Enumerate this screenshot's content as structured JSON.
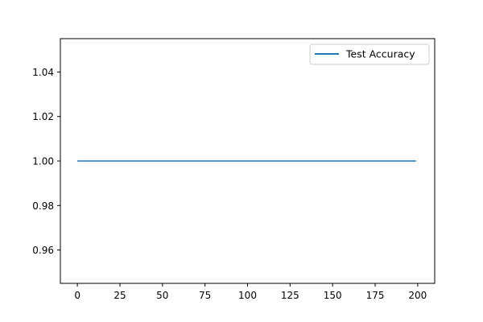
{
  "chart_data": {
    "type": "line",
    "title": "",
    "xlabel": "",
    "ylabel": "",
    "xlim": [
      -10,
      210
    ],
    "ylim": [
      0.945,
      1.055
    ],
    "xticks": [
      0,
      25,
      50,
      75,
      100,
      125,
      150,
      175,
      200
    ],
    "yticks": [
      0.96,
      0.98,
      1.0,
      1.02,
      1.04
    ],
    "xtick_labels": [
      "0",
      "25",
      "50",
      "75",
      "100",
      "125",
      "150",
      "175",
      "200"
    ],
    "ytick_labels": [
      "0.96",
      "0.98",
      "1.00",
      "1.02",
      "1.04"
    ],
    "grid": false,
    "legend_position": "upper right",
    "series": [
      {
        "name": "Test Accuracy",
        "color": "#1f77b4",
        "x": [
          0,
          199
        ],
        "y": [
          1.0,
          1.0
        ]
      }
    ]
  }
}
